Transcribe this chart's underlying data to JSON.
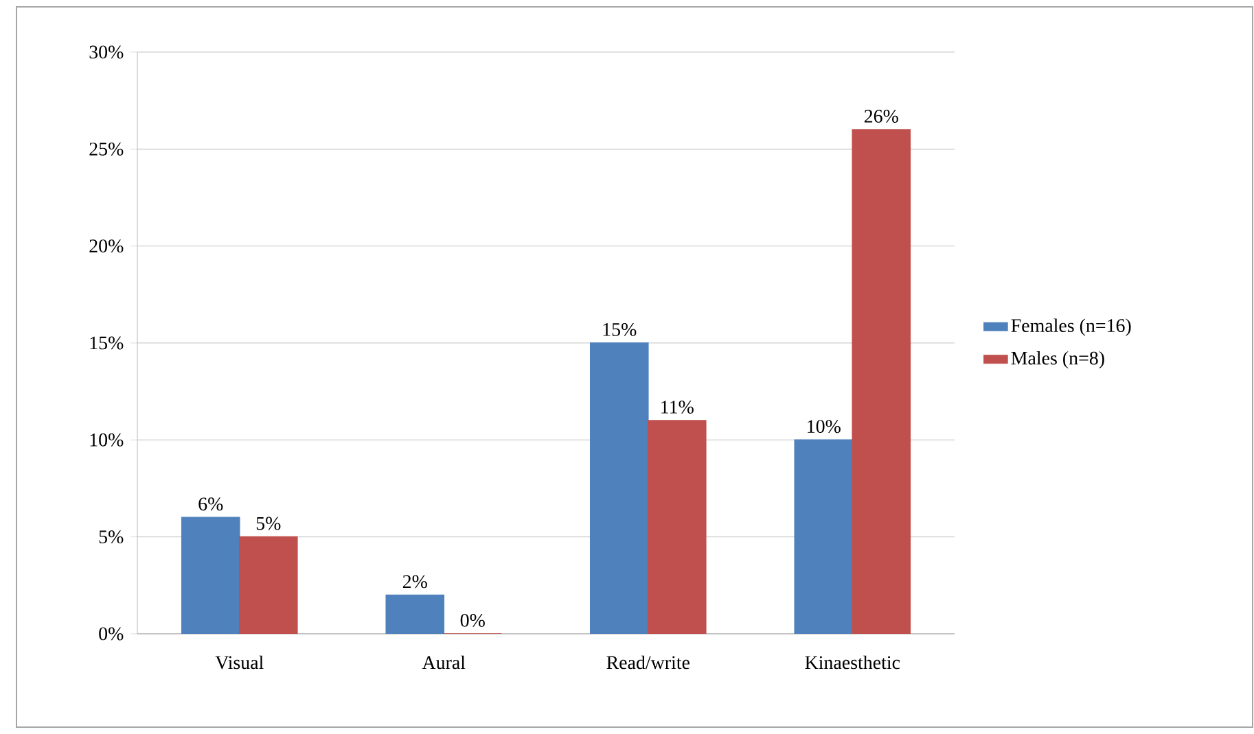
{
  "chart_data": {
    "type": "bar",
    "categories": [
      "Visual",
      "Aural",
      "Read/write",
      "Kinaesthetic"
    ],
    "series": [
      {
        "name": "Females (n=16)",
        "color": "#4f81bd",
        "values": [
          6,
          2,
          15,
          10
        ],
        "value_labels": [
          "6%",
          "2%",
          "15%",
          "10%"
        ]
      },
      {
        "name": "Males (n=8)",
        "color": "#c0504d",
        "values": [
          5,
          0,
          11,
          26
        ],
        "value_labels": [
          "5%",
          "0%",
          "11%",
          "26%"
        ]
      }
    ],
    "ylim": [
      0,
      30
    ],
    "yticks": [
      {
        "value": 0,
        "label": "0%"
      },
      {
        "value": 5,
        "label": "5%"
      },
      {
        "value": 10,
        "label": "10%"
      },
      {
        "value": 15,
        "label": "15%"
      },
      {
        "value": 20,
        "label": "20%"
      },
      {
        "value": 25,
        "label": "25%"
      },
      {
        "value": 30,
        "label": "30%"
      }
    ],
    "grid": "y",
    "legend": "right"
  }
}
